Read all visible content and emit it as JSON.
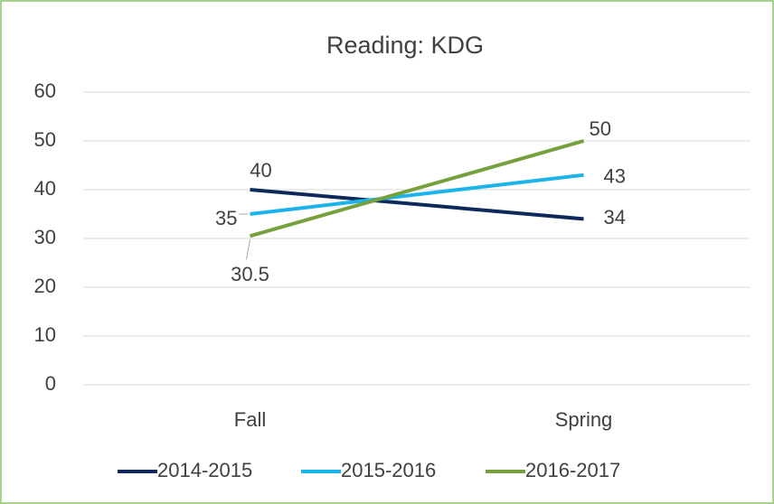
{
  "chart_data": {
    "type": "line",
    "title": "Reading: KDG",
    "categories": [
      "Fall",
      "Spring"
    ],
    "series": [
      {
        "name": "2014-2015",
        "color": "#0e2a5a",
        "values": [
          40,
          34
        ]
      },
      {
        "name": "2015-2016",
        "color": "#1ab3ec",
        "values": [
          35,
          43
        ]
      },
      {
        "name": "2016-2017",
        "color": "#76a03c",
        "values": [
          30.5,
          50
        ]
      }
    ],
    "ylim": [
      0,
      60
    ],
    "yticks": [
      0,
      10,
      20,
      30,
      40,
      50,
      60
    ],
    "grid": true,
    "legend": "bottom"
  }
}
